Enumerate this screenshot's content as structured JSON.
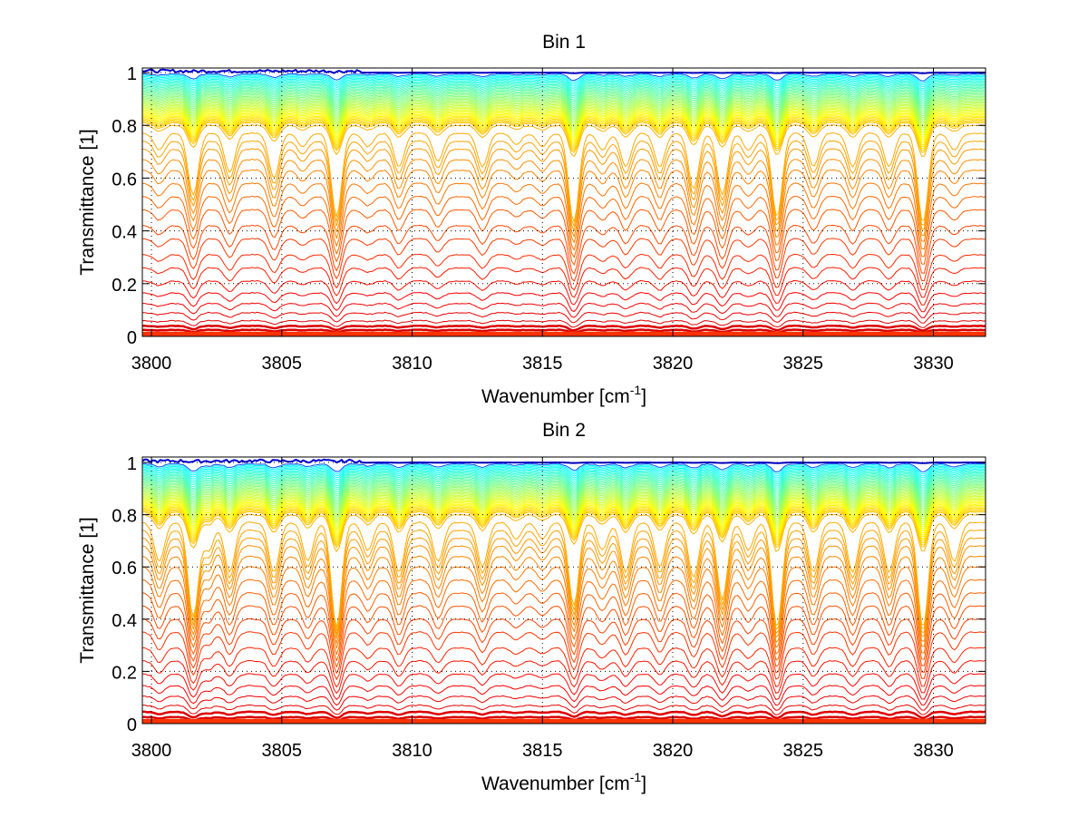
{
  "chart_data": [
    {
      "type": "line",
      "title": "Bin 1",
      "xlabel": "Wavenumber [cm",
      "xlabel_sup": "-1",
      "xlabel_end": "]",
      "ylabel": "Transmittance [1]",
      "xlim": [
        3799.65,
        3832
      ],
      "ylim": [
        0,
        1.02
      ],
      "xticks": [
        3800,
        3805,
        3810,
        3815,
        3820,
        3825,
        3830
      ],
      "xtick_labels": [
        "3800",
        "3805",
        "3810",
        "3815",
        "3820",
        "3825",
        "3830"
      ],
      "yticks": [
        0,
        0.2,
        0.4,
        0.6,
        0.8,
        1
      ],
      "ytick_labels": [
        "0",
        "0.2",
        "0.4",
        "0.6",
        "0.8",
        "1"
      ],
      "grid": true,
      "grid_style": "dotted",
      "colormap": "jet",
      "series_count": 60,
      "series_description": "Family of transmittance spectra, baselines from ~1.0 (blue) down to ~0 (red), colored by jet colormap",
      "baselines": [
        1.0,
        0.995,
        0.99,
        0.985,
        0.98,
        0.975,
        0.97,
        0.965,
        0.96,
        0.955,
        0.95,
        0.945,
        0.94,
        0.935,
        0.93,
        0.925,
        0.92,
        0.915,
        0.91,
        0.905,
        0.9,
        0.895,
        0.89,
        0.885,
        0.88,
        0.875,
        0.87,
        0.865,
        0.86,
        0.855,
        0.85,
        0.845,
        0.84,
        0.835,
        0.83,
        0.825,
        0.82,
        0.815,
        0.81,
        0.8,
        0.77,
        0.74,
        0.71,
        0.67,
        0.63,
        0.58,
        0.53,
        0.48,
        0.42,
        0.37,
        0.31,
        0.26,
        0.21,
        0.165,
        0.125,
        0.09,
        0.06,
        0.04,
        0.025,
        0.012
      ],
      "absorption_lines": [
        {
          "x": 3800.3,
          "depth": 0.15
        },
        {
          "x": 3801.6,
          "depth": 0.55
        },
        {
          "x": 3803.0,
          "depth": 0.35
        },
        {
          "x": 3804.7,
          "depth": 0.4
        },
        {
          "x": 3805.8,
          "depth": 0.12
        },
        {
          "x": 3807.1,
          "depth": 0.75
        },
        {
          "x": 3808.3,
          "depth": 0.12
        },
        {
          "x": 3809.5,
          "depth": 0.3
        },
        {
          "x": 3811.0,
          "depth": 0.25
        },
        {
          "x": 3812.7,
          "depth": 0.3
        },
        {
          "x": 3814.0,
          "depth": 0.1
        },
        {
          "x": 3815.0,
          "depth": 0.12
        },
        {
          "x": 3816.2,
          "depth": 0.8
        },
        {
          "x": 3817.3,
          "depth": 0.15
        },
        {
          "x": 3818.2,
          "depth": 0.3
        },
        {
          "x": 3819.5,
          "depth": 0.3
        },
        {
          "x": 3820.8,
          "depth": 0.5
        },
        {
          "x": 3821.9,
          "depth": 0.55
        },
        {
          "x": 3822.9,
          "depth": 0.15
        },
        {
          "x": 3824.0,
          "depth": 0.75
        },
        {
          "x": 3825.4,
          "depth": 0.3
        },
        {
          "x": 3826.9,
          "depth": 0.3
        },
        {
          "x": 3828.3,
          "depth": 0.3
        },
        {
          "x": 3829.6,
          "depth": 0.8
        },
        {
          "x": 3830.8,
          "depth": 0.15
        }
      ]
    },
    {
      "type": "line",
      "title": "Bin 2",
      "xlabel": "Wavenumber [cm",
      "xlabel_sup": "-1",
      "xlabel_end": "]",
      "ylabel": "Transmittance [1]",
      "xlim": [
        3799.65,
        3832
      ],
      "ylim": [
        0,
        1.02
      ],
      "xticks": [
        3800,
        3805,
        3810,
        3815,
        3820,
        3825,
        3830
      ],
      "xtick_labels": [
        "3800",
        "3805",
        "3810",
        "3815",
        "3820",
        "3825",
        "3830"
      ],
      "yticks": [
        0,
        0.2,
        0.4,
        0.6,
        0.8,
        1
      ],
      "ytick_labels": [
        "0",
        "0.2",
        "0.4",
        "0.6",
        "0.8",
        "1"
      ],
      "grid": true,
      "grid_style": "dotted",
      "colormap": "jet",
      "series_count": 60,
      "series_description": "Family of transmittance spectra, baselines from ~1.0 (blue) down to ~0 (red), colored by jet colormap",
      "baselines": [
        1.0,
        0.995,
        0.99,
        0.985,
        0.98,
        0.975,
        0.97,
        0.965,
        0.96,
        0.955,
        0.95,
        0.945,
        0.94,
        0.935,
        0.93,
        0.925,
        0.92,
        0.915,
        0.91,
        0.905,
        0.9,
        0.895,
        0.89,
        0.885,
        0.88,
        0.875,
        0.87,
        0.865,
        0.86,
        0.855,
        0.85,
        0.845,
        0.84,
        0.835,
        0.83,
        0.825,
        0.82,
        0.815,
        0.81,
        0.8,
        0.77,
        0.74,
        0.71,
        0.68,
        0.64,
        0.6,
        0.55,
        0.5,
        0.45,
        0.4,
        0.35,
        0.29,
        0.24,
        0.19,
        0.145,
        0.105,
        0.07,
        0.045,
        0.025,
        0.012
      ],
      "absorption_lines": [
        {
          "x": 3800.3,
          "depth": 0.35
        },
        {
          "x": 3801.6,
          "depth": 0.85
        },
        {
          "x": 3802.2,
          "depth": 0.25
        },
        {
          "x": 3803.0,
          "depth": 0.45
        },
        {
          "x": 3804.7,
          "depth": 0.45
        },
        {
          "x": 3806.0,
          "depth": 0.35
        },
        {
          "x": 3807.1,
          "depth": 0.95
        },
        {
          "x": 3808.3,
          "depth": 0.25
        },
        {
          "x": 3809.5,
          "depth": 0.45
        },
        {
          "x": 3811.0,
          "depth": 0.35
        },
        {
          "x": 3812.7,
          "depth": 0.4
        },
        {
          "x": 3814.0,
          "depth": 0.15
        },
        {
          "x": 3815.0,
          "depth": 0.15
        },
        {
          "x": 3816.2,
          "depth": 0.75
        },
        {
          "x": 3817.3,
          "depth": 0.25
        },
        {
          "x": 3818.2,
          "depth": 0.45
        },
        {
          "x": 3819.5,
          "depth": 0.4
        },
        {
          "x": 3820.8,
          "depth": 0.5
        },
        {
          "x": 3821.9,
          "depth": 0.7
        },
        {
          "x": 3822.9,
          "depth": 0.25
        },
        {
          "x": 3824.0,
          "depth": 0.95
        },
        {
          "x": 3825.4,
          "depth": 0.45
        },
        {
          "x": 3826.9,
          "depth": 0.45
        },
        {
          "x": 3828.3,
          "depth": 0.45
        },
        {
          "x": 3829.6,
          "depth": 0.95
        },
        {
          "x": 3830.8,
          "depth": 0.35
        }
      ]
    }
  ]
}
